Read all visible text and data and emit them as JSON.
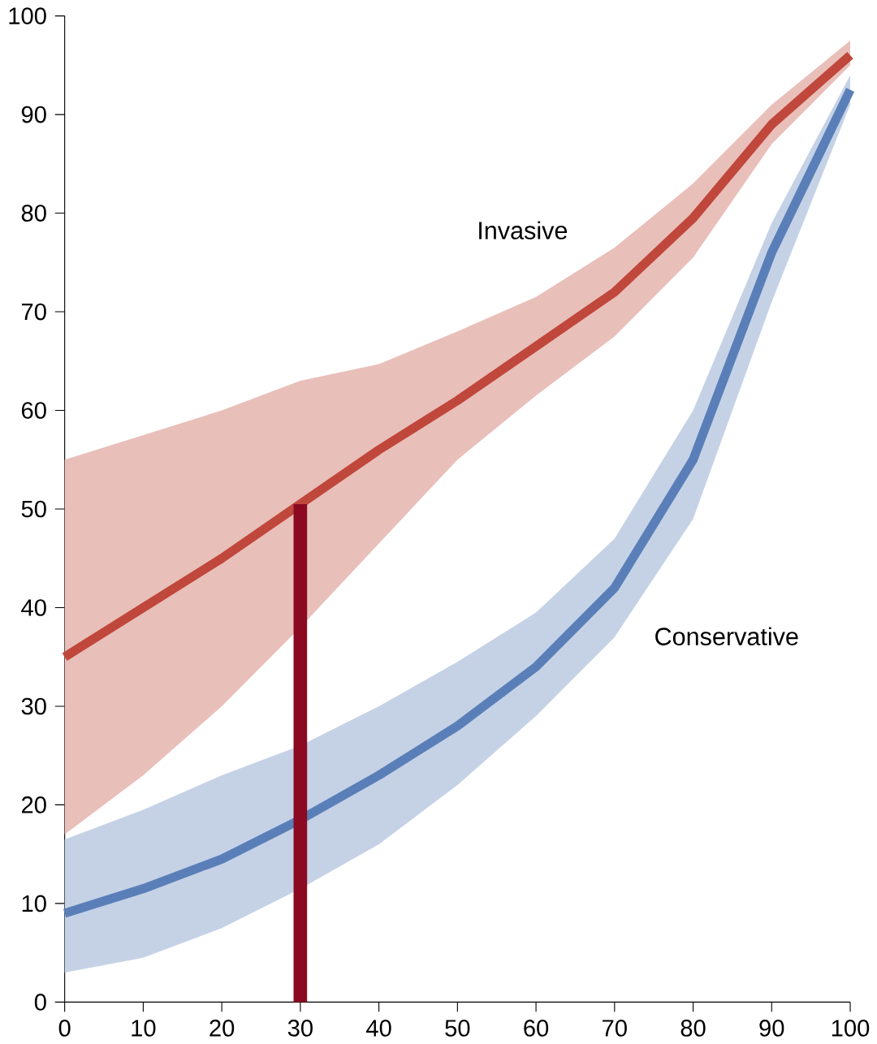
{
  "chart_data": {
    "type": "line",
    "x": [
      0,
      10,
      20,
      30,
      40,
      50,
      60,
      70,
      80,
      90,
      100
    ],
    "series": [
      {
        "name": "Invasive",
        "color": "#c0473b",
        "values": [
          35,
          40,
          45,
          50.5,
          56,
          61,
          66.5,
          72,
          79.5,
          89,
          96
        ],
        "lower": [
          17,
          23,
          30,
          38,
          46.5,
          55,
          61.5,
          67.5,
          75.5,
          87,
          95
        ],
        "upper": [
          55,
          57.5,
          60,
          63,
          64.7,
          68,
          71.5,
          76.5,
          83,
          91,
          97.5
        ]
      },
      {
        "name": "Conservative",
        "color": "#5a7fb8",
        "values": [
          9,
          11.5,
          14.5,
          18.5,
          23,
          28,
          34,
          42,
          55,
          76,
          92.5
        ],
        "lower": [
          3,
          4.5,
          7.5,
          11.5,
          16,
          22,
          29,
          37,
          49,
          71,
          91
        ],
        "upper": [
          16.5,
          19.5,
          23,
          26,
          30,
          34.5,
          39.5,
          47,
          60,
          79,
          94
        ]
      },
      {
        "type": "line",
        "color": "#8b0a22",
        "x": [
          30,
          30
        ],
        "values": [
          0,
          50.5
        ]
      }
    ],
    "xlim": [
      0,
      100
    ],
    "ylim": [
      0,
      100
    ],
    "xticks": [
      0,
      10,
      20,
      30,
      40,
      50,
      60,
      70,
      80,
      90,
      100
    ],
    "yticks": [
      0,
      10,
      20,
      30,
      40,
      50,
      60,
      70,
      80,
      90,
      100
    ],
    "marker": "none"
  }
}
